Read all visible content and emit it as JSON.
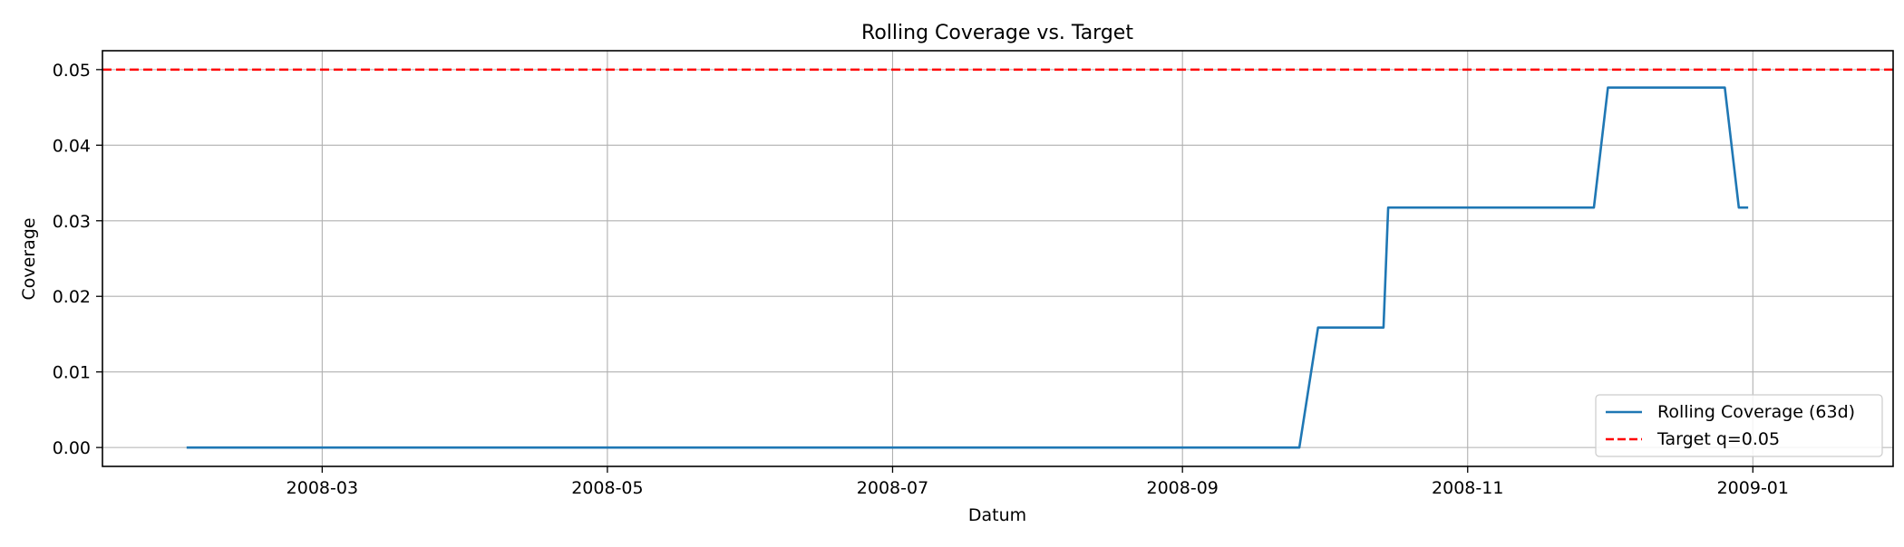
{
  "chart_data": {
    "type": "line",
    "title": "Rolling Coverage vs. Target",
    "xlabel": "Datum",
    "ylabel": "Coverage",
    "x_type": "date",
    "xlim": [
      "2008-01-14",
      "2009-01-31"
    ],
    "ylim": [
      -0.0025,
      0.0525
    ],
    "grid": true,
    "legend_position": "lower-right",
    "x_ticks": [
      {
        "date": "2008-03-01",
        "label": "2008-03"
      },
      {
        "date": "2008-05-01",
        "label": "2008-05"
      },
      {
        "date": "2008-07-01",
        "label": "2008-07"
      },
      {
        "date": "2008-09-01",
        "label": "2008-09"
      },
      {
        "date": "2008-11-01",
        "label": "2008-11"
      },
      {
        "date": "2009-01-01",
        "label": "2009-01"
      }
    ],
    "y_ticks": [
      {
        "value": 0.0,
        "label": "0.00"
      },
      {
        "value": 0.01,
        "label": "0.01"
      },
      {
        "value": 0.02,
        "label": "0.02"
      },
      {
        "value": 0.03,
        "label": "0.03"
      },
      {
        "value": 0.04,
        "label": "0.04"
      },
      {
        "value": 0.05,
        "label": "0.05"
      }
    ],
    "series": [
      {
        "name": "Rolling Coverage (63d)",
        "color": "#1f77b4",
        "style": "solid",
        "points": [
          {
            "x": "2008-02-01",
            "y": 0.0
          },
          {
            "x": "2008-09-26",
            "y": 0.0
          },
          {
            "x": "2008-09-30",
            "y": 0.01587
          },
          {
            "x": "2008-10-14",
            "y": 0.01587
          },
          {
            "x": "2008-10-15",
            "y": 0.03175
          },
          {
            "x": "2008-11-28",
            "y": 0.03175
          },
          {
            "x": "2008-12-01",
            "y": 0.04762
          },
          {
            "x": "2008-12-26",
            "y": 0.04762
          },
          {
            "x": "2008-12-29",
            "y": 0.03175
          },
          {
            "x": "2008-12-31",
            "y": 0.03175
          }
        ]
      }
    ],
    "reference_lines": [
      {
        "name": "Target q=0.05",
        "y": 0.05,
        "color": "#ff0000",
        "style": "dashed"
      }
    ]
  }
}
